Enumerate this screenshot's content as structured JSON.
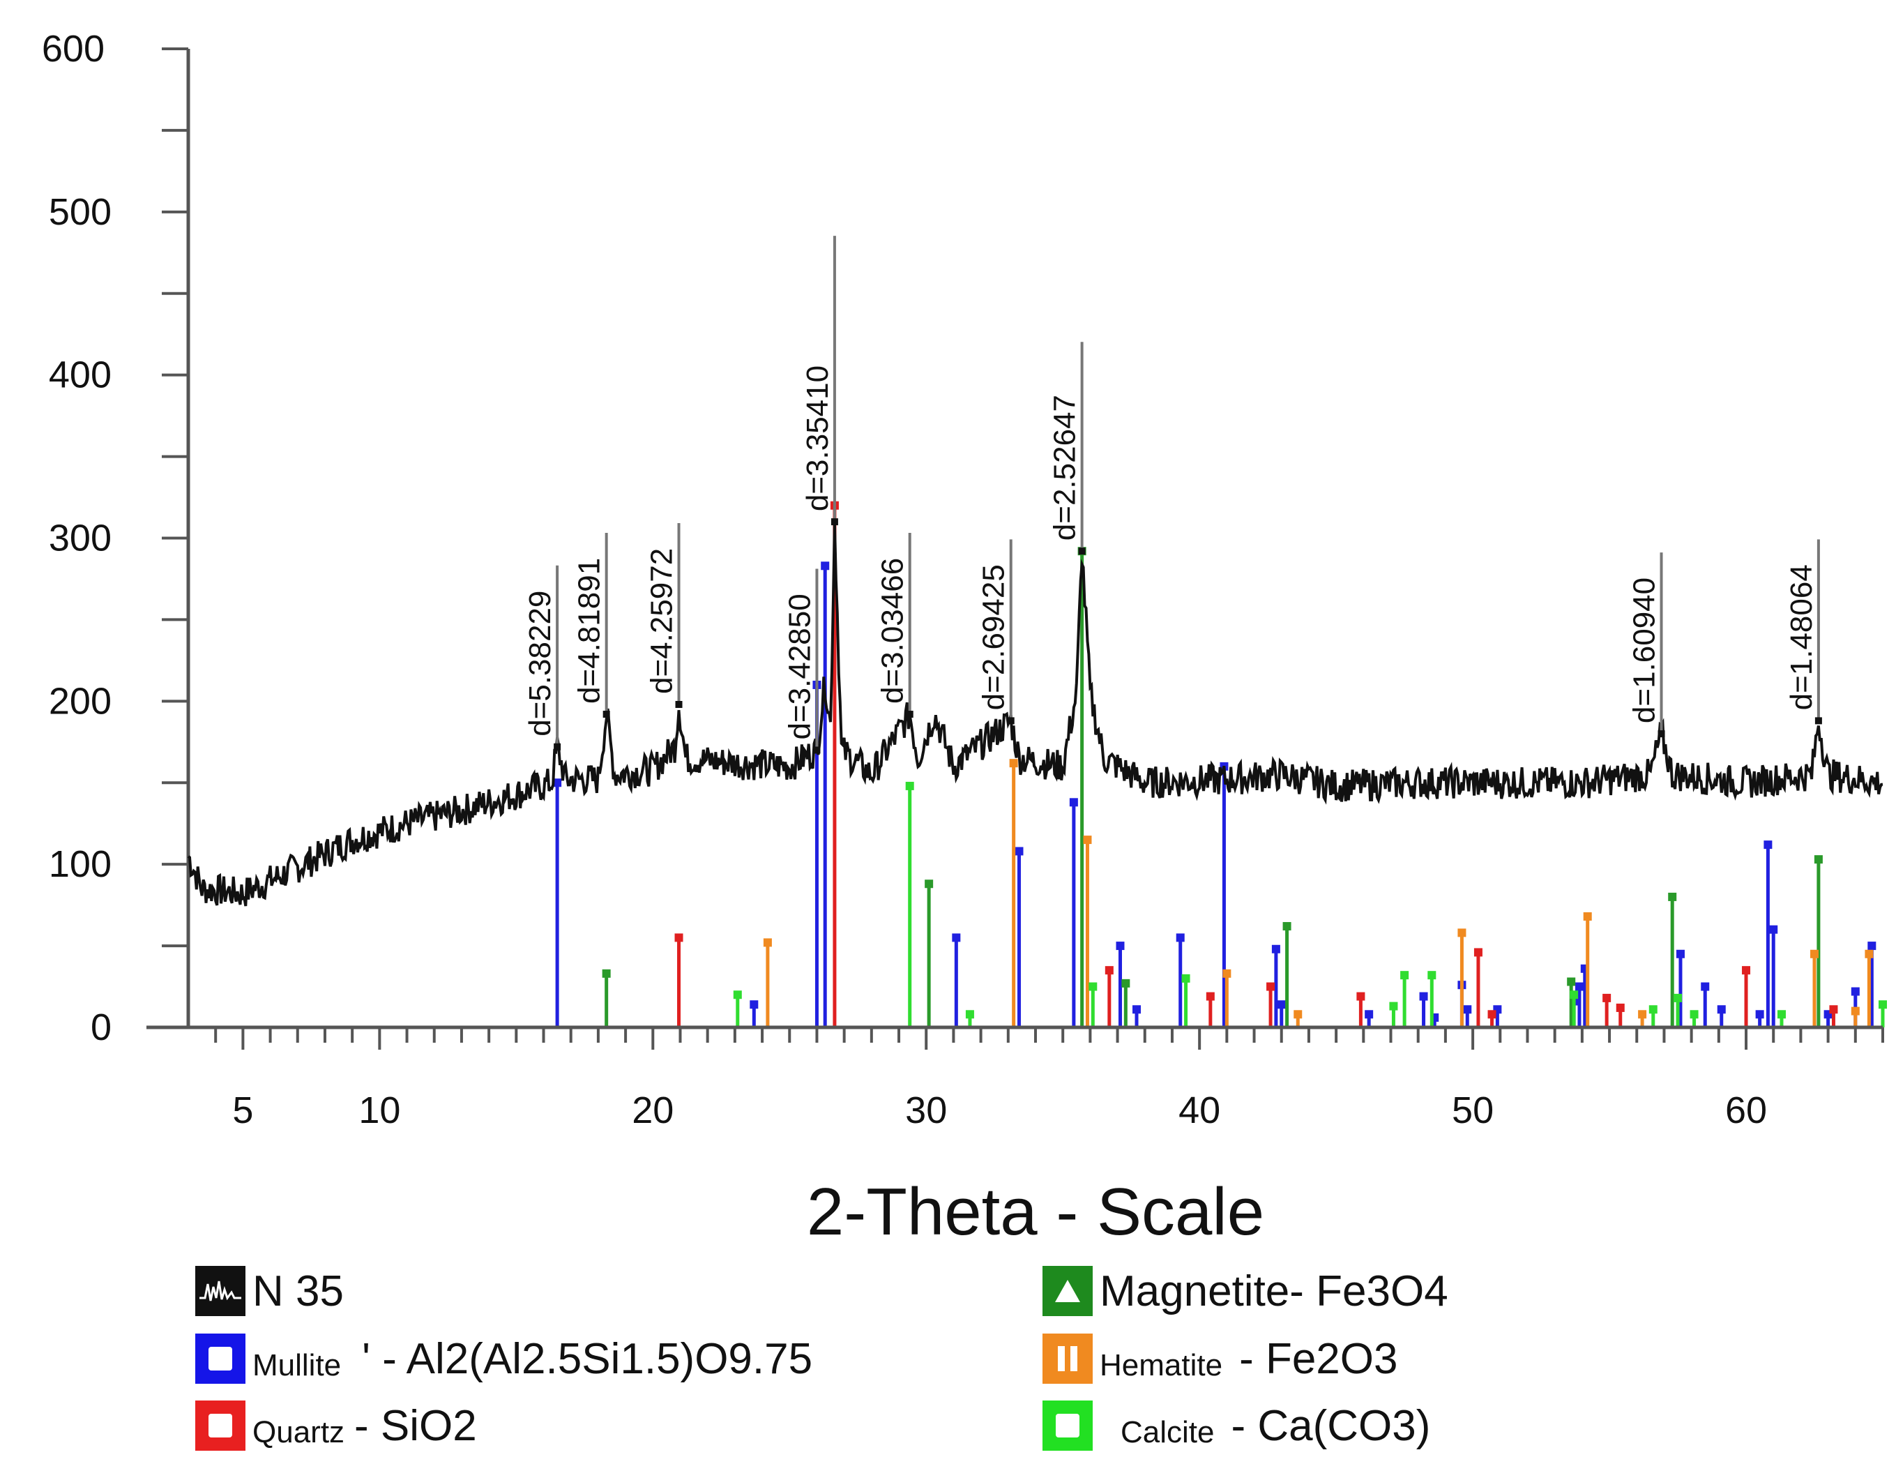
{
  "chart_data": {
    "type": "line",
    "xlabel": "2-Theta - Scale",
    "ylabel": "",
    "xlim": [
      3.0,
      65.0
    ],
    "ylim": [
      0,
      600
    ],
    "x_ticks": [
      5,
      10,
      20,
      30,
      40,
      50,
      60
    ],
    "y_ticks": [
      0,
      100,
      200,
      300,
      400,
      500,
      600
    ],
    "series": [
      {
        "name": "N 35",
        "color": "#111111",
        "points": [
          [
            3.0,
            105
          ],
          [
            3.5,
            85
          ],
          [
            5,
            82
          ],
          [
            7,
            98
          ],
          [
            9,
            115
          ],
          [
            11,
            125
          ],
          [
            13,
            133
          ],
          [
            15,
            143
          ],
          [
            16.3,
            150
          ],
          [
            16.5,
            172
          ],
          [
            16.8,
            152
          ],
          [
            18,
            152
          ],
          [
            18.3,
            192
          ],
          [
            18.6,
            155
          ],
          [
            20,
            158
          ],
          [
            20.8,
            172
          ],
          [
            20.95,
            198
          ],
          [
            21.2,
            165
          ],
          [
            23,
            162
          ],
          [
            25,
            160
          ],
          [
            26.0,
            170
          ],
          [
            26.3,
            212
          ],
          [
            26.5,
            185
          ],
          [
            26.65,
            310
          ],
          [
            26.9,
            170
          ],
          [
            28,
            155
          ],
          [
            29.4,
            192
          ],
          [
            29.7,
            165
          ],
          [
            30.3,
            192
          ],
          [
            31,
            160
          ],
          [
            33.1,
            188
          ],
          [
            33.4,
            165
          ],
          [
            35.0,
            160
          ],
          [
            35.5,
            205
          ],
          [
            35.7,
            292
          ],
          [
            36.0,
            205
          ],
          [
            36.5,
            165
          ],
          [
            38,
            150
          ],
          [
            41,
            152
          ],
          [
            43,
            155
          ],
          [
            45,
            148
          ],
          [
            48,
            150
          ],
          [
            51,
            150
          ],
          [
            54,
            150
          ],
          [
            56.5,
            155
          ],
          [
            56.9,
            180
          ],
          [
            57.3,
            155
          ],
          [
            60,
            150
          ],
          [
            62.4,
            155
          ],
          [
            62.65,
            188
          ],
          [
            63,
            155
          ],
          [
            65,
            150
          ]
        ]
      }
    ],
    "peak_labels": [
      {
        "x": 16.5,
        "text": "d=5.38229"
      },
      {
        "x": 18.3,
        "text": "d=4.81891"
      },
      {
        "x": 20.95,
        "text": "d=4.25972"
      },
      {
        "x": 26.0,
        "text": "d=3.42850"
      },
      {
        "x": 26.65,
        "text": "d=3.35410"
      },
      {
        "x": 29.4,
        "text": "d=3.03466"
      },
      {
        "x": 33.1,
        "text": "d=2.69425"
      },
      {
        "x": 35.7,
        "text": "d=2.52647"
      },
      {
        "x": 56.9,
        "text": "d=1.60940"
      },
      {
        "x": 62.65,
        "text": "d=1.48064"
      }
    ],
    "reference_sticks": [
      {
        "phase": "Mullite",
        "color": "#2020e0",
        "sticks": [
          [
            16.5,
            150
          ],
          [
            23.7,
            14
          ],
          [
            26.0,
            210
          ],
          [
            26.3,
            283
          ],
          [
            31.1,
            55
          ],
          [
            33.4,
            108
          ],
          [
            35.4,
            138
          ],
          [
            37.1,
            50
          ],
          [
            37.7,
            11
          ],
          [
            39.3,
            55
          ],
          [
            40.9,
            160
          ],
          [
            42.8,
            48
          ],
          [
            43.0,
            14
          ],
          [
            46.2,
            8
          ],
          [
            48.2,
            19
          ],
          [
            48.6,
            6
          ],
          [
            49.6,
            26
          ],
          [
            49.8,
            11
          ],
          [
            50.9,
            11
          ],
          [
            53.7,
            16
          ],
          [
            53.9,
            25
          ],
          [
            54.1,
            36
          ],
          [
            57.6,
            45
          ],
          [
            58.5,
            25
          ],
          [
            59.1,
            11
          ],
          [
            60.5,
            8
          ],
          [
            60.8,
            112
          ],
          [
            61.0,
            60
          ],
          [
            63.0,
            8
          ],
          [
            64.0,
            22
          ],
          [
            64.6,
            50
          ]
        ]
      },
      {
        "phase": "Quartz",
        "color": "#e02020",
        "sticks": [
          [
            20.95,
            55
          ],
          [
            26.65,
            320
          ],
          [
            36.7,
            35
          ],
          [
            40.4,
            19
          ],
          [
            42.6,
            25
          ],
          [
            45.9,
            19
          ],
          [
            50.2,
            46
          ],
          [
            50.7,
            8
          ],
          [
            54.9,
            18
          ],
          [
            55.4,
            12
          ],
          [
            60.0,
            35
          ],
          [
            63.2,
            11
          ]
        ]
      },
      {
        "phase": "Magnetite",
        "color": "#2a9a2a",
        "sticks": [
          [
            18.3,
            33
          ],
          [
            30.1,
            88
          ],
          [
            35.7,
            292
          ],
          [
            37.3,
            27
          ],
          [
            43.2,
            62
          ],
          [
            53.6,
            28
          ],
          [
            57.3,
            80
          ],
          [
            62.65,
            103
          ]
        ]
      },
      {
        "phase": "Hematite",
        "color": "#f08a20",
        "sticks": [
          [
            24.2,
            52
          ],
          [
            33.2,
            162
          ],
          [
            35.9,
            115
          ],
          [
            41.0,
            33
          ],
          [
            43.6,
            8
          ],
          [
            49.6,
            58
          ],
          [
            54.2,
            68
          ],
          [
            56.2,
            8
          ],
          [
            62.5,
            45
          ],
          [
            64.0,
            10
          ],
          [
            64.5,
            45
          ]
        ]
      },
      {
        "phase": "Calcite",
        "color": "#30dd30",
        "sticks": [
          [
            23.1,
            20
          ],
          [
            29.4,
            148
          ],
          [
            31.6,
            8
          ],
          [
            36.1,
            25
          ],
          [
            39.5,
            30
          ],
          [
            47.1,
            13
          ],
          [
            47.5,
            32
          ],
          [
            48.5,
            32
          ],
          [
            53.7,
            20
          ],
          [
            56.6,
            11
          ],
          [
            57.5,
            18
          ],
          [
            58.1,
            8
          ],
          [
            61.3,
            8
          ],
          [
            65.0,
            14
          ]
        ]
      }
    ]
  },
  "legend": {
    "items": [
      {
        "name": "N 35",
        "formula": ""
      },
      {
        "name": "Mullite",
        "formula": "' - Al2(Al2.5Si1.5)O9.75"
      },
      {
        "name": "Quartz",
        "formula": " - SiO2"
      },
      {
        "name": "Magnetite",
        "formula": " - Fe3O4"
      },
      {
        "name": "Hematite",
        "formula": " - Fe2O3"
      },
      {
        "name": "Calcite",
        "formula": " - Ca(CO3)"
      }
    ]
  }
}
